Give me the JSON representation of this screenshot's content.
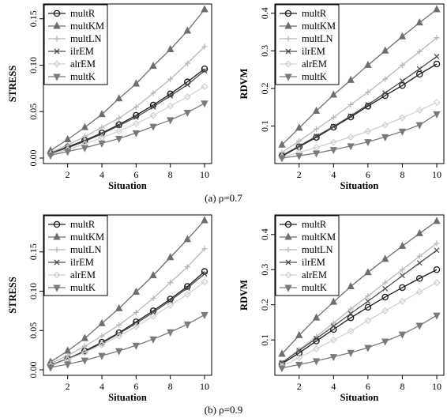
{
  "figure": {
    "captions": [
      "(a)  ρ=0.7",
      "(b)  ρ=0.9"
    ]
  },
  "styles": {
    "multR": {
      "color": "#1a1a1a",
      "marker": "circle"
    },
    "multKM": {
      "color": "#6e6e6e",
      "marker": "triangle-up"
    },
    "multLN": {
      "color": "#b8b8b8",
      "marker": "plus"
    },
    "ilrEM": {
      "color": "#4d4d4d",
      "marker": "cross"
    },
    "alrEM": {
      "color": "#d2d2d2",
      "marker": "diamond"
    },
    "multK": {
      "color": "#7a7a7a",
      "marker": "triangle-down"
    }
  },
  "chart_data": [
    {
      "type": "line",
      "panel": "a",
      "xlabel": "Situation",
      "ylabel": "STRESS",
      "xlim": [
        1,
        10
      ],
      "ylim": [
        0,
        0.16
      ],
      "xticks": [
        2,
        4,
        6,
        8,
        10
      ],
      "yticks": [
        0.0,
        0.05,
        0.1,
        0.15
      ],
      "ytick_labels": [
        "0.00",
        "0.05",
        "0.10",
        "0.15"
      ],
      "legend_position": "top-left",
      "x": [
        1,
        2,
        3,
        4,
        5,
        6,
        7,
        8,
        9,
        10
      ],
      "series": [
        {
          "name": "multR",
          "values": [
            0.005,
            0.012,
            0.019,
            0.027,
            0.036,
            0.046,
            0.057,
            0.069,
            0.082,
            0.096
          ]
        },
        {
          "name": "multKM",
          "values": [
            0.008,
            0.02,
            0.033,
            0.047,
            0.064,
            0.08,
            0.099,
            0.117,
            0.137,
            0.16
          ]
        },
        {
          "name": "multLN",
          "values": [
            0.006,
            0.014,
            0.023,
            0.033,
            0.043,
            0.055,
            0.07,
            0.085,
            0.102,
            0.12
          ]
        },
        {
          "name": "ilrEM",
          "values": [
            0.005,
            0.011,
            0.018,
            0.026,
            0.035,
            0.044,
            0.055,
            0.067,
            0.079,
            0.094
          ]
        },
        {
          "name": "alrEM",
          "values": [
            0.004,
            0.009,
            0.015,
            0.022,
            0.029,
            0.037,
            0.046,
            0.056,
            0.066,
            0.077
          ]
        },
        {
          "name": "multK",
          "values": [
            0.003,
            0.007,
            0.011,
            0.016,
            0.021,
            0.027,
            0.034,
            0.041,
            0.049,
            0.059
          ]
        }
      ]
    },
    {
      "type": "line",
      "panel": "a",
      "xlabel": "Situation",
      "ylabel": "RDVM",
      "xlim": [
        1,
        10
      ],
      "ylim": [
        0.015,
        0.41
      ],
      "xticks": [
        2,
        4,
        6,
        8,
        10
      ],
      "yticks": [
        0.1,
        0.2,
        0.3,
        0.4
      ],
      "ytick_labels": [
        "0.1",
        "0.2",
        "0.3",
        "0.4"
      ],
      "legend_position": "top-left",
      "x": [
        1,
        2,
        3,
        4,
        5,
        6,
        7,
        8,
        9,
        10
      ],
      "series": [
        {
          "name": "multR",
          "values": [
            0.02,
            0.045,
            0.07,
            0.097,
            0.124,
            0.153,
            0.181,
            0.208,
            0.238,
            0.265
          ]
        },
        {
          "name": "multKM",
          "values": [
            0.05,
            0.095,
            0.14,
            0.183,
            0.222,
            0.262,
            0.3,
            0.338,
            0.375,
            0.41
          ]
        },
        {
          "name": "multLN",
          "values": [
            0.03,
            0.06,
            0.092,
            0.123,
            0.157,
            0.19,
            0.225,
            0.262,
            0.298,
            0.335
          ]
        },
        {
          "name": "ilrEM",
          "values": [
            0.022,
            0.047,
            0.073,
            0.099,
            0.127,
            0.157,
            0.188,
            0.22,
            0.252,
            0.285
          ]
        },
        {
          "name": "alrEM",
          "values": [
            0.018,
            0.03,
            0.043,
            0.057,
            0.071,
            0.086,
            0.103,
            0.122,
            0.142,
            0.163
          ]
        },
        {
          "name": "multK",
          "values": [
            0.015,
            0.021,
            0.028,
            0.037,
            0.047,
            0.058,
            0.071,
            0.086,
            0.103,
            0.132
          ]
        }
      ]
    },
    {
      "type": "line",
      "panel": "b",
      "xlabel": "Situation",
      "ylabel": "STRESS",
      "xlim": [
        1,
        10
      ],
      "ylim": [
        0,
        0.19
      ],
      "xticks": [
        2,
        4,
        6,
        8,
        10
      ],
      "yticks": [
        0.0,
        0.05,
        0.1,
        0.15
      ],
      "ytick_labels": [
        "0.00",
        "0.05",
        "0.10",
        "0.15"
      ],
      "legend_position": "top-left",
      "x": [
        1,
        2,
        3,
        4,
        5,
        6,
        7,
        8,
        9,
        10
      ],
      "series": [
        {
          "name": "multR",
          "values": [
            0.006,
            0.014,
            0.024,
            0.035,
            0.047,
            0.061,
            0.075,
            0.09,
            0.106,
            0.125
          ]
        },
        {
          "name": "multKM",
          "values": [
            0.01,
            0.024,
            0.04,
            0.059,
            0.078,
            0.099,
            0.12,
            0.143,
            0.166,
            0.19
          ]
        },
        {
          "name": "multLN",
          "values": [
            0.008,
            0.018,
            0.03,
            0.043,
            0.057,
            0.073,
            0.091,
            0.111,
            0.131,
            0.154
          ]
        },
        {
          "name": "ilrEM",
          "values": [
            0.006,
            0.014,
            0.023,
            0.034,
            0.046,
            0.059,
            0.073,
            0.088,
            0.104,
            0.122
          ]
        },
        {
          "name": "alrEM",
          "values": [
            0.005,
            0.013,
            0.022,
            0.032,
            0.043,
            0.055,
            0.068,
            0.082,
            0.096,
            0.112
          ]
        },
        {
          "name": "multK",
          "values": [
            0.003,
            0.007,
            0.012,
            0.018,
            0.024,
            0.031,
            0.039,
            0.048,
            0.058,
            0.07
          ]
        }
      ]
    },
    {
      "type": "line",
      "panel": "b",
      "xlabel": "Situation",
      "ylabel": "RDVM",
      "xlim": [
        1,
        10
      ],
      "ylim": [
        0.015,
        0.44
      ],
      "xticks": [
        2,
        4,
        6,
        8,
        10
      ],
      "yticks": [
        0.1,
        0.2,
        0.3,
        0.4
      ],
      "ytick_labels": [
        "0.1",
        "0.2",
        "0.3",
        "0.4"
      ],
      "legend_position": "top-left",
      "x": [
        1,
        2,
        3,
        4,
        5,
        6,
        7,
        8,
        9,
        10
      ],
      "series": [
        {
          "name": "multR",
          "values": [
            0.032,
            0.063,
            0.097,
            0.13,
            0.163,
            0.193,
            0.222,
            0.249,
            0.275,
            0.3
          ]
        },
        {
          "name": "multKM",
          "values": [
            0.06,
            0.113,
            0.163,
            0.208,
            0.252,
            0.292,
            0.33,
            0.367,
            0.403,
            0.438
          ]
        },
        {
          "name": "multLN",
          "values": [
            0.035,
            0.072,
            0.11,
            0.148,
            0.188,
            0.225,
            0.263,
            0.3,
            0.338,
            0.375
          ]
        },
        {
          "name": "ilrEM",
          "values": [
            0.035,
            0.07,
            0.104,
            0.139,
            0.175,
            0.21,
            0.246,
            0.283,
            0.319,
            0.355
          ]
        },
        {
          "name": "alrEM",
          "values": [
            0.025,
            0.05,
            0.075,
            0.1,
            0.125,
            0.155,
            0.183,
            0.21,
            0.237,
            0.263
          ]
        },
        {
          "name": "multK",
          "values": [
            0.02,
            0.03,
            0.04,
            0.052,
            0.064,
            0.078,
            0.096,
            0.116,
            0.141,
            0.17
          ]
        }
      ]
    }
  ]
}
